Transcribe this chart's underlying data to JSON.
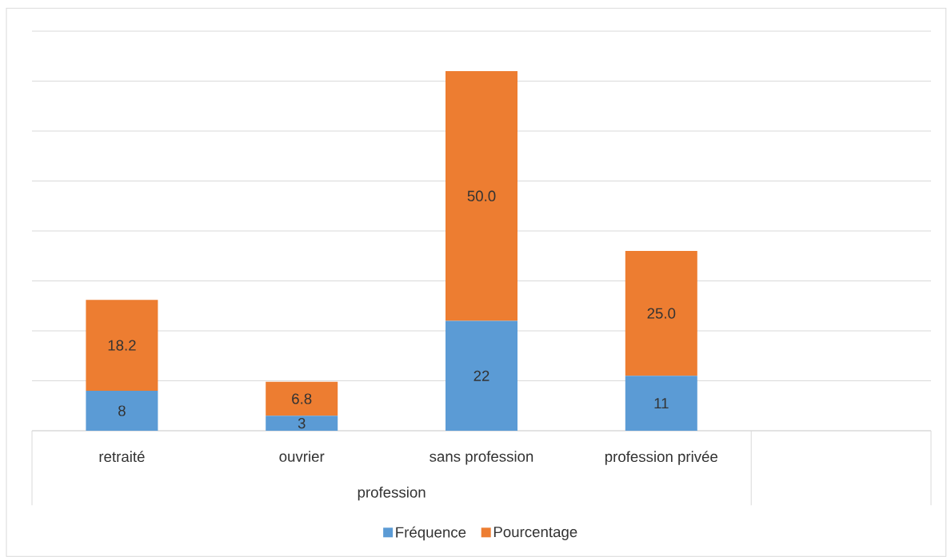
{
  "chart_data": {
    "type": "bar",
    "stacked": true,
    "xlabel": "profession",
    "categories": [
      "retraité",
      "ouvrier",
      "sans profession",
      "profession privée",
      null
    ],
    "series": [
      {
        "name": "Fréquence",
        "color": "#5b9bd5",
        "values": [
          8,
          3,
          22,
          11,
          null
        ],
        "value_labels": [
          "8",
          "3",
          "22",
          "11",
          null
        ]
      },
      {
        "name": "Pourcentage",
        "color": "#ed7d31",
        "values": [
          18.2,
          6.8,
          50.0,
          25.0,
          null
        ],
        "value_labels": [
          "18.2",
          "6.8",
          "50.0",
          "25.0",
          null
        ]
      }
    ],
    "ylim": [
      0,
      80
    ],
    "yticks": [
      {
        "value": 0,
        "label": null
      },
      {
        "value": 10,
        "label": null
      },
      {
        "value": 20,
        "label": null
      },
      {
        "value": 30,
        "label": null
      },
      {
        "value": 40,
        "label": null
      },
      {
        "value": 50,
        "label": null
      },
      {
        "value": 60,
        "label": null
      },
      {
        "value": 70,
        "label": null
      },
      {
        "value": 80,
        "label": null
      }
    ],
    "tick_labels": "x",
    "grid": "y",
    "legend": "bottom"
  }
}
